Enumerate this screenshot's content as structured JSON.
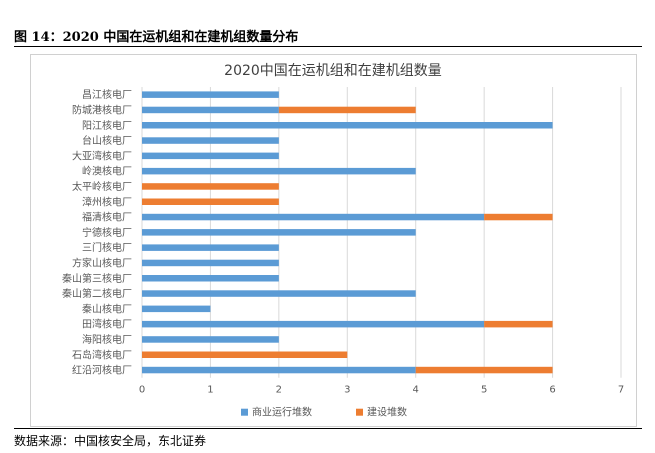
{
  "figure": {
    "caption": "图 14：2020 中国在运机组和在建机组数量分布",
    "source": "数据来源：中国核安全局，东北证券"
  },
  "colors": {
    "operating": "#5b9bd5",
    "construction": "#ed7d31",
    "grid": "#d9d9d9",
    "tick_text": "#595959"
  },
  "chart_data": {
    "type": "bar",
    "orientation": "horizontal",
    "stacked": true,
    "title": "2020中国在运机组和在建机组数量",
    "categories": [
      "昌江核电厂",
      "防城港核电厂",
      "阳江核电厂",
      "台山核电厂",
      "大亚湾核电厂",
      "岭澳核电厂",
      "太平岭核电厂",
      "漳州核电厂",
      "福清核电厂",
      "宁德核电厂",
      "三门核电厂",
      "方家山核电厂",
      "秦山第三核电厂",
      "秦山第二核电厂",
      "秦山核电厂",
      "田湾核电厂",
      "海阳核电厂",
      "石岛湾核电厂",
      "红沿河核电厂"
    ],
    "series": [
      {
        "name": "商业运行堆数",
        "values": [
          2,
          2,
          6,
          2,
          2,
          4,
          0,
          0,
          5,
          4,
          2,
          2,
          2,
          4,
          1,
          5,
          2,
          0,
          4
        ]
      },
      {
        "name": "建设堆数",
        "values": [
          0,
          2,
          0,
          0,
          0,
          0,
          2,
          2,
          1,
          0,
          0,
          0,
          0,
          0,
          0,
          1,
          0,
          3,
          2
        ]
      }
    ],
    "xlim": [
      0,
      7
    ],
    "xticks": [
      "0",
      "1",
      "2",
      "3",
      "4",
      "5",
      "6",
      "7"
    ],
    "grid": "vertical",
    "legend": "bottom"
  }
}
